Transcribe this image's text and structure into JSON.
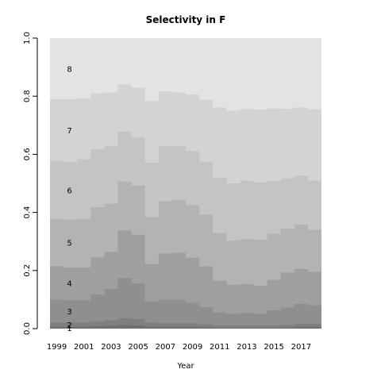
{
  "chart_data": {
    "type": "area",
    "title": "Selectivity in F",
    "xlabel": "Year",
    "ylabel": "",
    "x": [
      1999,
      2000,
      2001,
      2002,
      2003,
      2004,
      2005,
      2006,
      2007,
      2008,
      2009,
      2010,
      2011,
      2012,
      2013,
      2014,
      2015,
      2016,
      2017,
      2018
    ],
    "xticks": [
      "1999",
      "2001",
      "2003",
      "2005",
      "2007",
      "2009",
      "2011",
      "2013",
      "2015",
      "2017"
    ],
    "xlim": [
      1998.5,
      2018.5
    ],
    "ylim": [
      0,
      1
    ],
    "yticks": [
      "0.0",
      "0.2",
      "0.4",
      "0.6",
      "0.8",
      "1.0"
    ],
    "stacked": true,
    "step": true,
    "series": [
      {
        "name": "1",
        "color": "#6e6e6e",
        "values": [
          0.006,
          0.006,
          0.006,
          0.008,
          0.01,
          0.012,
          0.011,
          0.006,
          0.005,
          0.005,
          0.005,
          0.004,
          0.003,
          0.003,
          0.003,
          0.003,
          0.003,
          0.004,
          0.005,
          0.005
        ]
      },
      {
        "name": "2",
        "color": "#7f7f7f",
        "values": [
          0.014,
          0.014,
          0.014,
          0.016,
          0.019,
          0.024,
          0.022,
          0.014,
          0.013,
          0.013,
          0.013,
          0.011,
          0.008,
          0.008,
          0.008,
          0.008,
          0.008,
          0.009,
          0.011,
          0.011
        ]
      },
      {
        "name": "3",
        "color": "#8f8f8f",
        "values": [
          0.08,
          0.077,
          0.077,
          0.093,
          0.108,
          0.137,
          0.123,
          0.074,
          0.082,
          0.082,
          0.071,
          0.059,
          0.045,
          0.04,
          0.043,
          0.04,
          0.052,
          0.06,
          0.069,
          0.064
        ]
      },
      {
        "name": "4",
        "color": "#9f9f9f",
        "values": [
          0.115,
          0.113,
          0.113,
          0.128,
          0.128,
          0.165,
          0.167,
          0.128,
          0.158,
          0.161,
          0.155,
          0.14,
          0.109,
          0.1,
          0.099,
          0.097,
          0.105,
          0.12,
          0.12,
          0.115
        ]
      },
      {
        "name": "5",
        "color": "#b3b3b3",
        "values": [
          0.163,
          0.165,
          0.168,
          0.173,
          0.165,
          0.168,
          0.169,
          0.162,
          0.181,
          0.182,
          0.181,
          0.178,
          0.164,
          0.152,
          0.155,
          0.158,
          0.158,
          0.151,
          0.153,
          0.145
        ]
      },
      {
        "name": "6",
        "color": "#c4c4c4",
        "values": [
          0.198,
          0.198,
          0.205,
          0.2,
          0.198,
          0.172,
          0.166,
          0.187,
          0.19,
          0.185,
          0.186,
          0.183,
          0.191,
          0.197,
          0.202,
          0.197,
          0.183,
          0.173,
          0.168,
          0.17
        ]
      },
      {
        "name": "7",
        "color": "#d3d3d3",
        "values": [
          0.214,
          0.217,
          0.21,
          0.192,
          0.185,
          0.162,
          0.172,
          0.212,
          0.188,
          0.185,
          0.195,
          0.213,
          0.241,
          0.25,
          0.246,
          0.251,
          0.249,
          0.24,
          0.235,
          0.245
        ]
      },
      {
        "name": "8",
        "color": "#e3e3e3",
        "values": [
          0.21,
          0.21,
          0.207,
          0.19,
          0.187,
          0.16,
          0.17,
          0.217,
          0.183,
          0.187,
          0.194,
          0.212,
          0.239,
          0.25,
          0.244,
          0.256,
          0.242,
          0.243,
          0.239,
          0.245
        ]
      }
    ]
  }
}
